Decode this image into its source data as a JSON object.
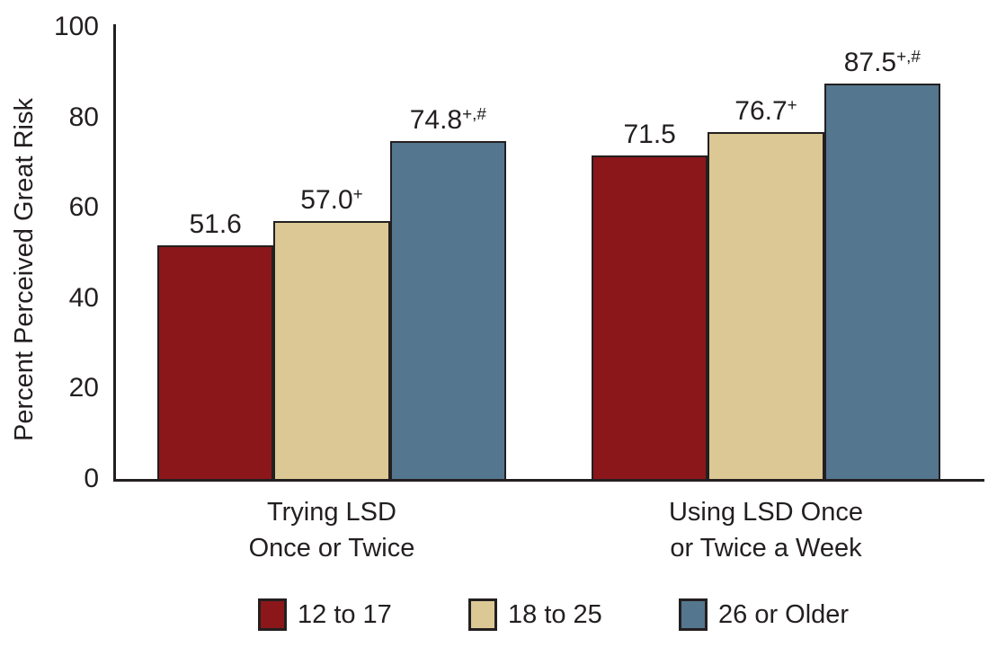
{
  "figure": {
    "background": "#FFFFFF",
    "text_color": "#231F20",
    "axis_color": "#231F20"
  },
  "chart_data": {
    "type": "bar",
    "ylabel": "Percent Perceived Great Risk",
    "xlabel": "",
    "ylim": [
      0,
      100
    ],
    "yticks": [
      0,
      20,
      40,
      60,
      80,
      100
    ],
    "grid": false,
    "legend_position": "bottom",
    "value_labels": true,
    "value_label_decimals": 1,
    "categories": [
      "Trying LSD\nOnce or Twice",
      "Using LSD Once\nor Twice a Week"
    ],
    "series": [
      {
        "name": "12 to 17",
        "color": "#8B171A",
        "values": [
          51.6,
          71.5
        ],
        "value_suffixes": [
          "",
          ""
        ]
      },
      {
        "name": "18 to 25",
        "color": "#DBC894",
        "values": [
          57.0,
          76.7
        ],
        "value_suffixes": [
          "+",
          "+"
        ]
      },
      {
        "name": "26 or Older",
        "color": "#54768F",
        "values": [
          74.8,
          87.5
        ],
        "value_suffixes": [
          "+,#",
          "+,#"
        ]
      }
    ]
  }
}
